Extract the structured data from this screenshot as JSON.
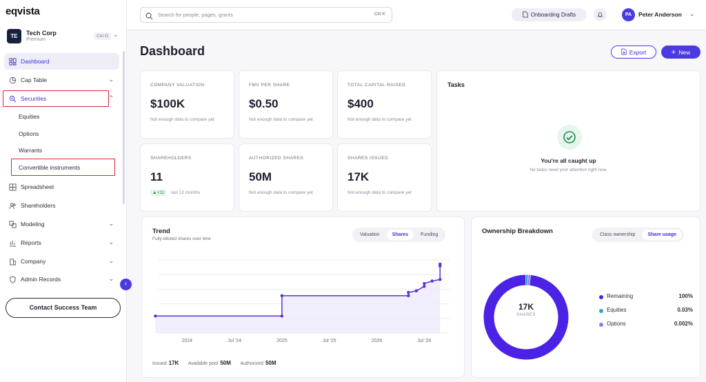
{
  "app": {
    "logo": "eqvista"
  },
  "org": {
    "initials": "TE",
    "name": "Tech Corp",
    "plan": "Premium",
    "shortcut": "Ctrl O"
  },
  "sidebar": {
    "items": [
      {
        "label": "Dashboard",
        "icon": "dashboard-icon"
      },
      {
        "label": "Cap Table",
        "icon": "pie-icon"
      },
      {
        "label": "Securities",
        "icon": "securities-icon"
      },
      {
        "label": "Spreadsheet",
        "icon": "grid-icon"
      },
      {
        "label": "Shareholders",
        "icon": "users-icon"
      },
      {
        "label": "Modeling",
        "icon": "modeling-icon"
      },
      {
        "label": "Reports",
        "icon": "chart-icon"
      },
      {
        "label": "Company",
        "icon": "building-icon"
      },
      {
        "label": "Admin Records",
        "icon": "shield-icon"
      }
    ],
    "securities_sub": [
      "Equities",
      "Options",
      "Warrants",
      "Convertible instruments"
    ],
    "contact_label": "Contact Success Team"
  },
  "topbar": {
    "search_placeholder": "Search for people, pages, grants",
    "search_shortcut": "Ctrl K",
    "drafts_label": "Onboarding Drafts",
    "user_initials": "PA",
    "user_name": "Peter Anderson"
  },
  "page": {
    "title": "Dashboard",
    "export_label": "Export",
    "new_label": "New"
  },
  "kpis": [
    {
      "label": "COMPANY VALUATION",
      "value": "$100K",
      "note": "Not enough data to compare yet"
    },
    {
      "label": "FMV PER SHARE",
      "value": "$0.50",
      "note": "Not enough data to compare yet"
    },
    {
      "label": "TOTAL CAPITAL RAISED",
      "value": "$400",
      "note": "Not enough data to compare yet"
    },
    {
      "label": "SHAREHOLDERS",
      "value": "11",
      "badge": "▲+11",
      "period": "last 12 months"
    },
    {
      "label": "AUTHORIZED SHARES",
      "value": "50M",
      "note": "Not enough data to compare yet"
    },
    {
      "label": "SHARES ISSUED",
      "value": "17K",
      "note": "Not enough data to compare yet"
    }
  ],
  "tasks": {
    "title": "Tasks",
    "heading": "You're all caught up",
    "subtext": "No tasks need your attention right now."
  },
  "trend": {
    "title": "Trend",
    "subtitle": "Fully-diluted shares over time",
    "tabs": [
      "Valuation",
      "Shares",
      "Funding"
    ],
    "active_tab": "Shares",
    "footer": [
      {
        "label": "Issued",
        "value": "17K"
      },
      {
        "label": "Available pool",
        "value": "50M"
      },
      {
        "label": "Authorized",
        "value": "50M"
      }
    ]
  },
  "ownership": {
    "title": "Ownership Breakdown",
    "tabs": [
      "Class ownership",
      "Share usage"
    ],
    "active_tab": "Share usage",
    "center_value": "17K",
    "center_label": "SHARES",
    "legend": [
      {
        "label": "Remaining",
        "value": "100%",
        "color": "#4b22e6"
      },
      {
        "label": "Equities",
        "value": "0.03%",
        "color": "#29a3e6"
      },
      {
        "label": "Options",
        "value": "0.002%",
        "color": "#8b7cf0"
      }
    ]
  },
  "chart_data": [
    {
      "type": "line",
      "title": "Trend",
      "subtitle": "Fully-diluted shares over time",
      "x_ticks": [
        "2024",
        "Jul '24",
        "2025",
        "Jul '25",
        "2026",
        "Jul '26"
      ],
      "series": [
        {
          "values": [
            {
              "x": "2023-09",
              "y": 4200
            },
            {
              "x": "2025-01",
              "y": 4200
            },
            {
              "x": "2025-01",
              "y": 9200
            },
            {
              "x": "2026-05",
              "y": 9200
            },
            {
              "x": "2026-05",
              "y": 10000
            },
            {
              "x": "2026-06",
              "y": 10400
            },
            {
              "x": "2026-07",
              "y": 11500
            },
            {
              "x": "2026-07",
              "y": 12200
            },
            {
              "x": "2026-08",
              "y": 12800
            },
            {
              "x": "2026-09",
              "y": 13200
            },
            {
              "x": "2026-09",
              "y": 16500
            },
            {
              "x": "2026-09",
              "y": 17000
            }
          ]
        }
      ],
      "grid": true
    },
    {
      "type": "pie",
      "title": "Ownership Breakdown",
      "slices": [
        {
          "label": "Remaining",
          "value": 100
        },
        {
          "label": "Equities",
          "value": 0.03
        },
        {
          "label": "Options",
          "value": 0.002
        }
      ]
    }
  ]
}
